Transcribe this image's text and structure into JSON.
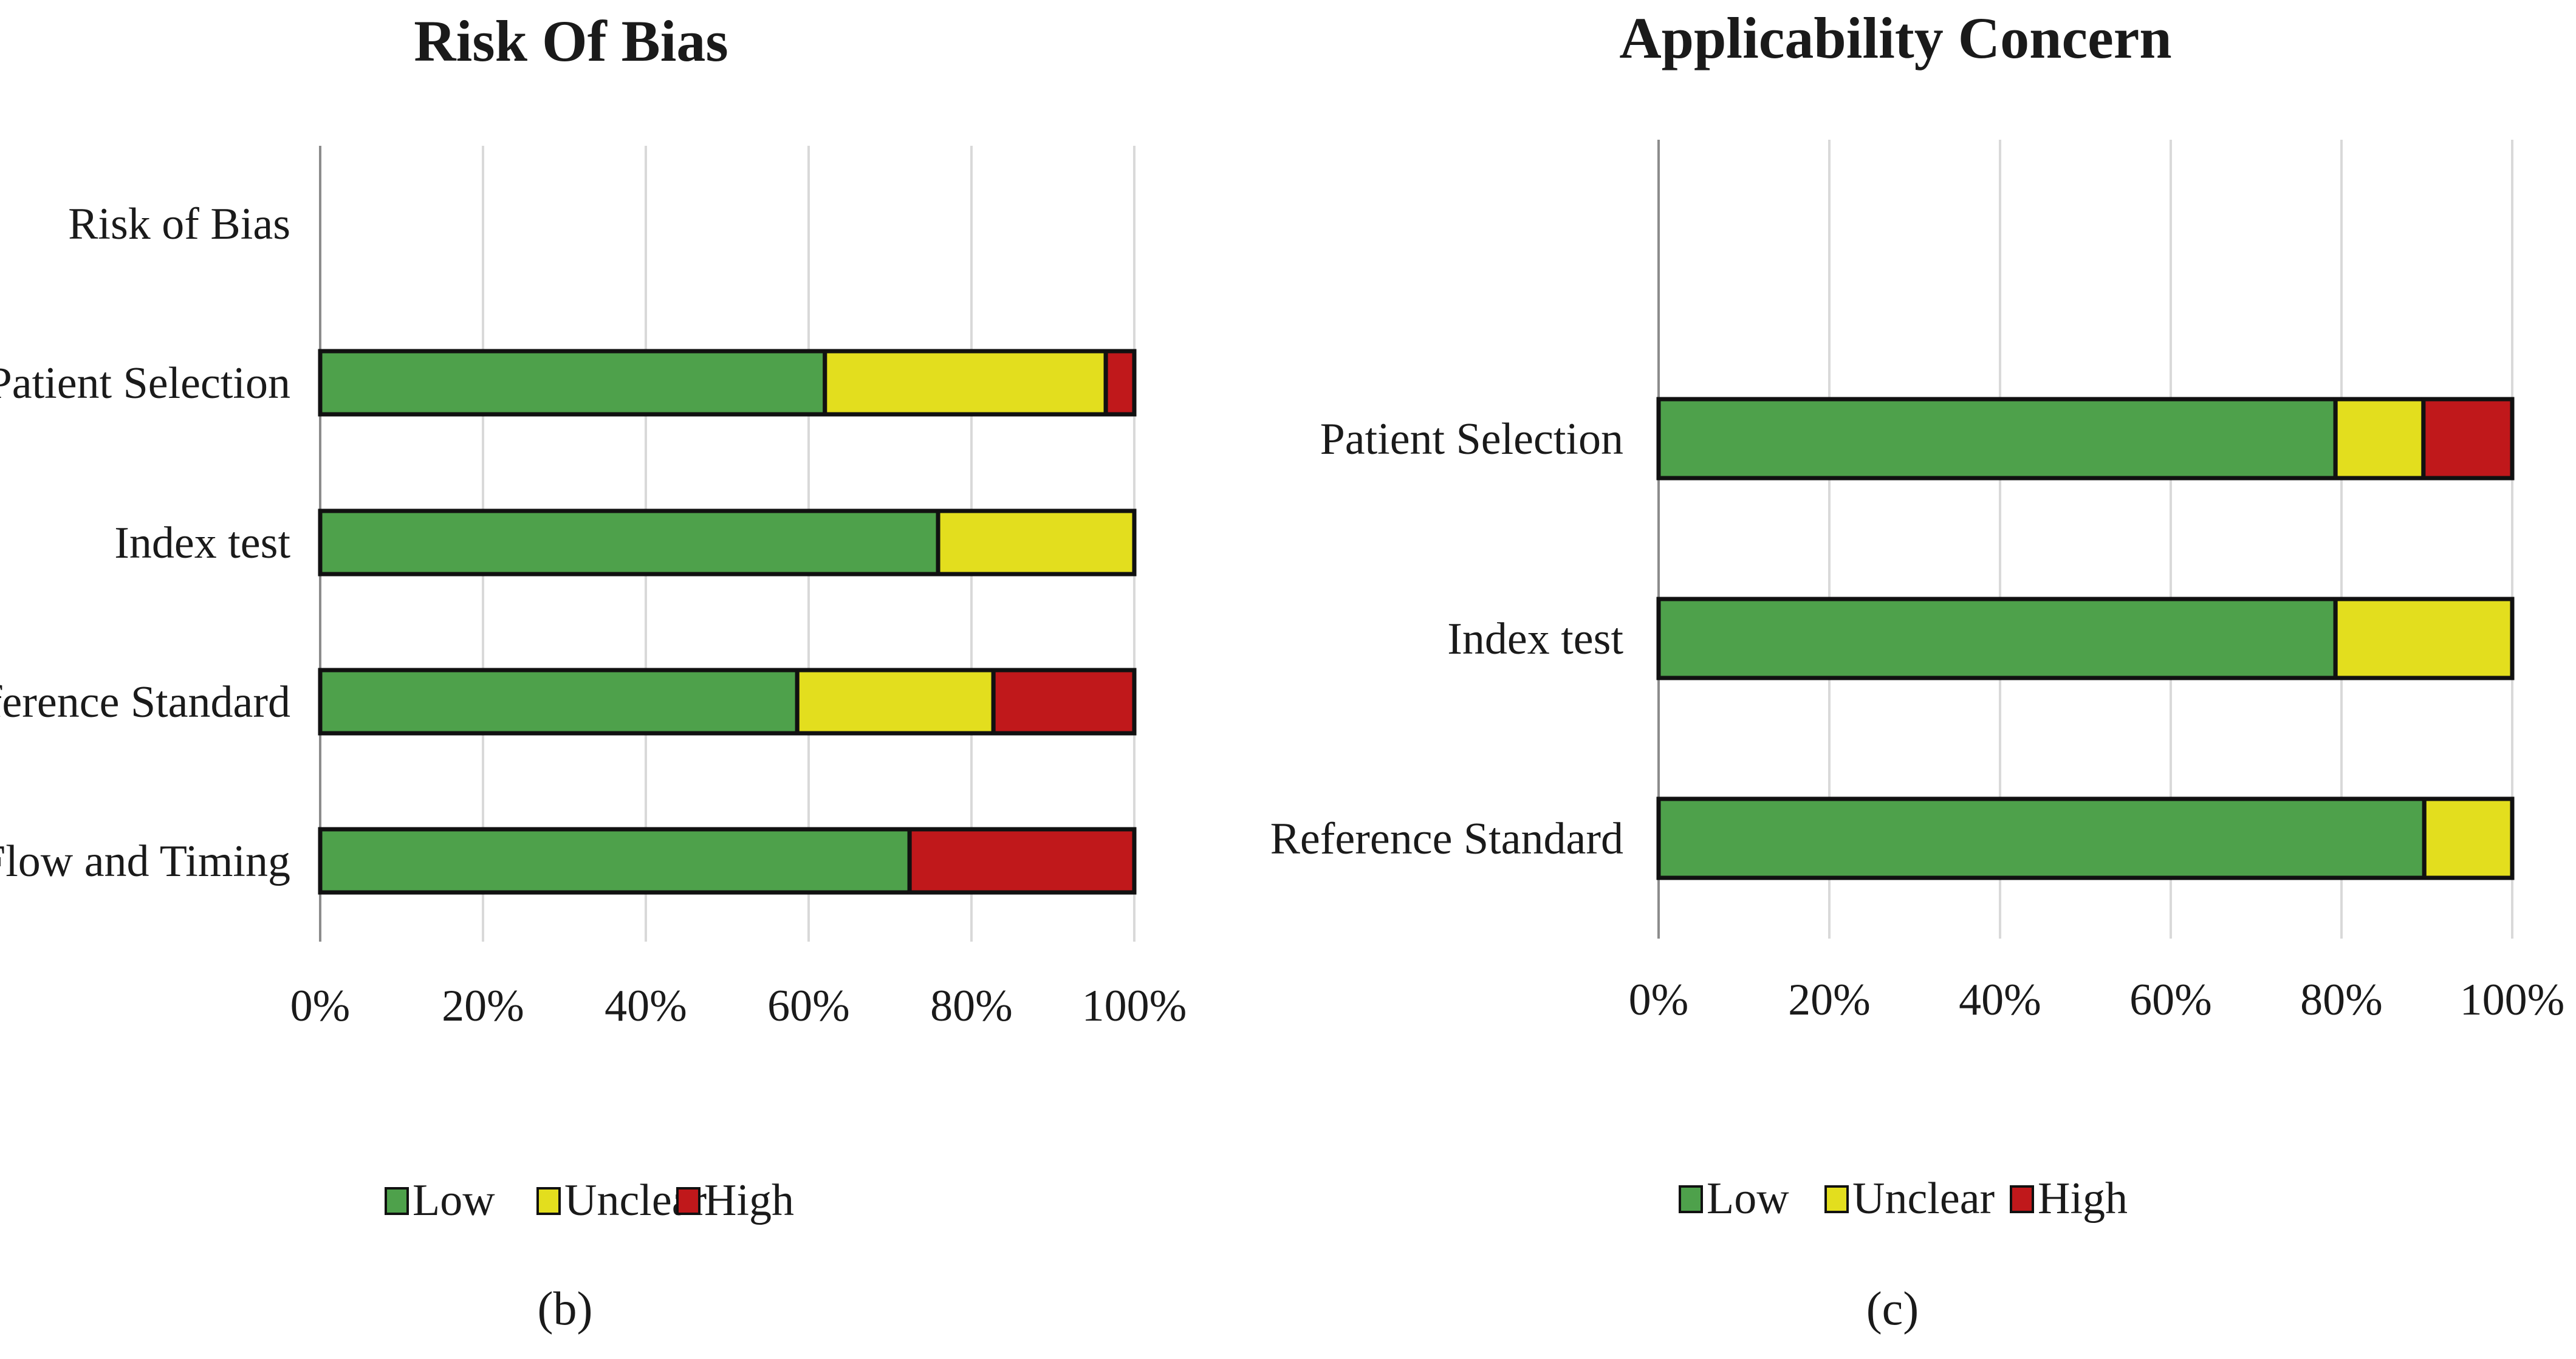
{
  "chart_data": [
    {
      "type": "bar",
      "orientation": "horizontal",
      "stacked": "percent",
      "title": "Risk Of Bias",
      "panel_label": "(b)",
      "categories": [
        "Risk of Bias",
        "Patient Selection",
        "Index test",
        "Reference Standard",
        "Flow and Timing"
      ],
      "series": [
        {
          "name": "Low",
          "color": "#4ea14b",
          "values": [
            0,
            62,
            75.9,
            58.6,
            72.4
          ]
        },
        {
          "name": "Unclear",
          "color": "#e3de1e",
          "values": [
            0,
            34.5,
            24.1,
            24.1,
            0
          ]
        },
        {
          "name": "High",
          "color": "#c0181b",
          "values": [
            0,
            3.5,
            0,
            17.3,
            27.6
          ]
        }
      ],
      "xlim": [
        0,
        100
      ],
      "xticks": [
        "0%",
        "20%",
        "40%",
        "60%",
        "80%",
        "100%"
      ],
      "grid": true,
      "legend_position": "bottom"
    },
    {
      "type": "bar",
      "orientation": "horizontal",
      "stacked": "percent",
      "title": "Applicability Concern",
      "panel_label": "(c)",
      "categories": [
        "Patient Selection",
        "Index test",
        "Reference Standard"
      ],
      "series": [
        {
          "name": "Low",
          "color": "#4ea14b",
          "values": [
            79.3,
            79.3,
            89.7
          ]
        },
        {
          "name": "Unclear",
          "color": "#e3de1e",
          "values": [
            10.3,
            20.7,
            10.3
          ]
        },
        {
          "name": "High",
          "color": "#c0181b",
          "values": [
            10.4,
            0,
            0
          ]
        }
      ],
      "xlim": [
        0,
        100
      ],
      "xticks": [
        "0%",
        "20%",
        "40%",
        "60%",
        "80%",
        "100%"
      ],
      "grid": true,
      "legend_position": "bottom"
    }
  ]
}
